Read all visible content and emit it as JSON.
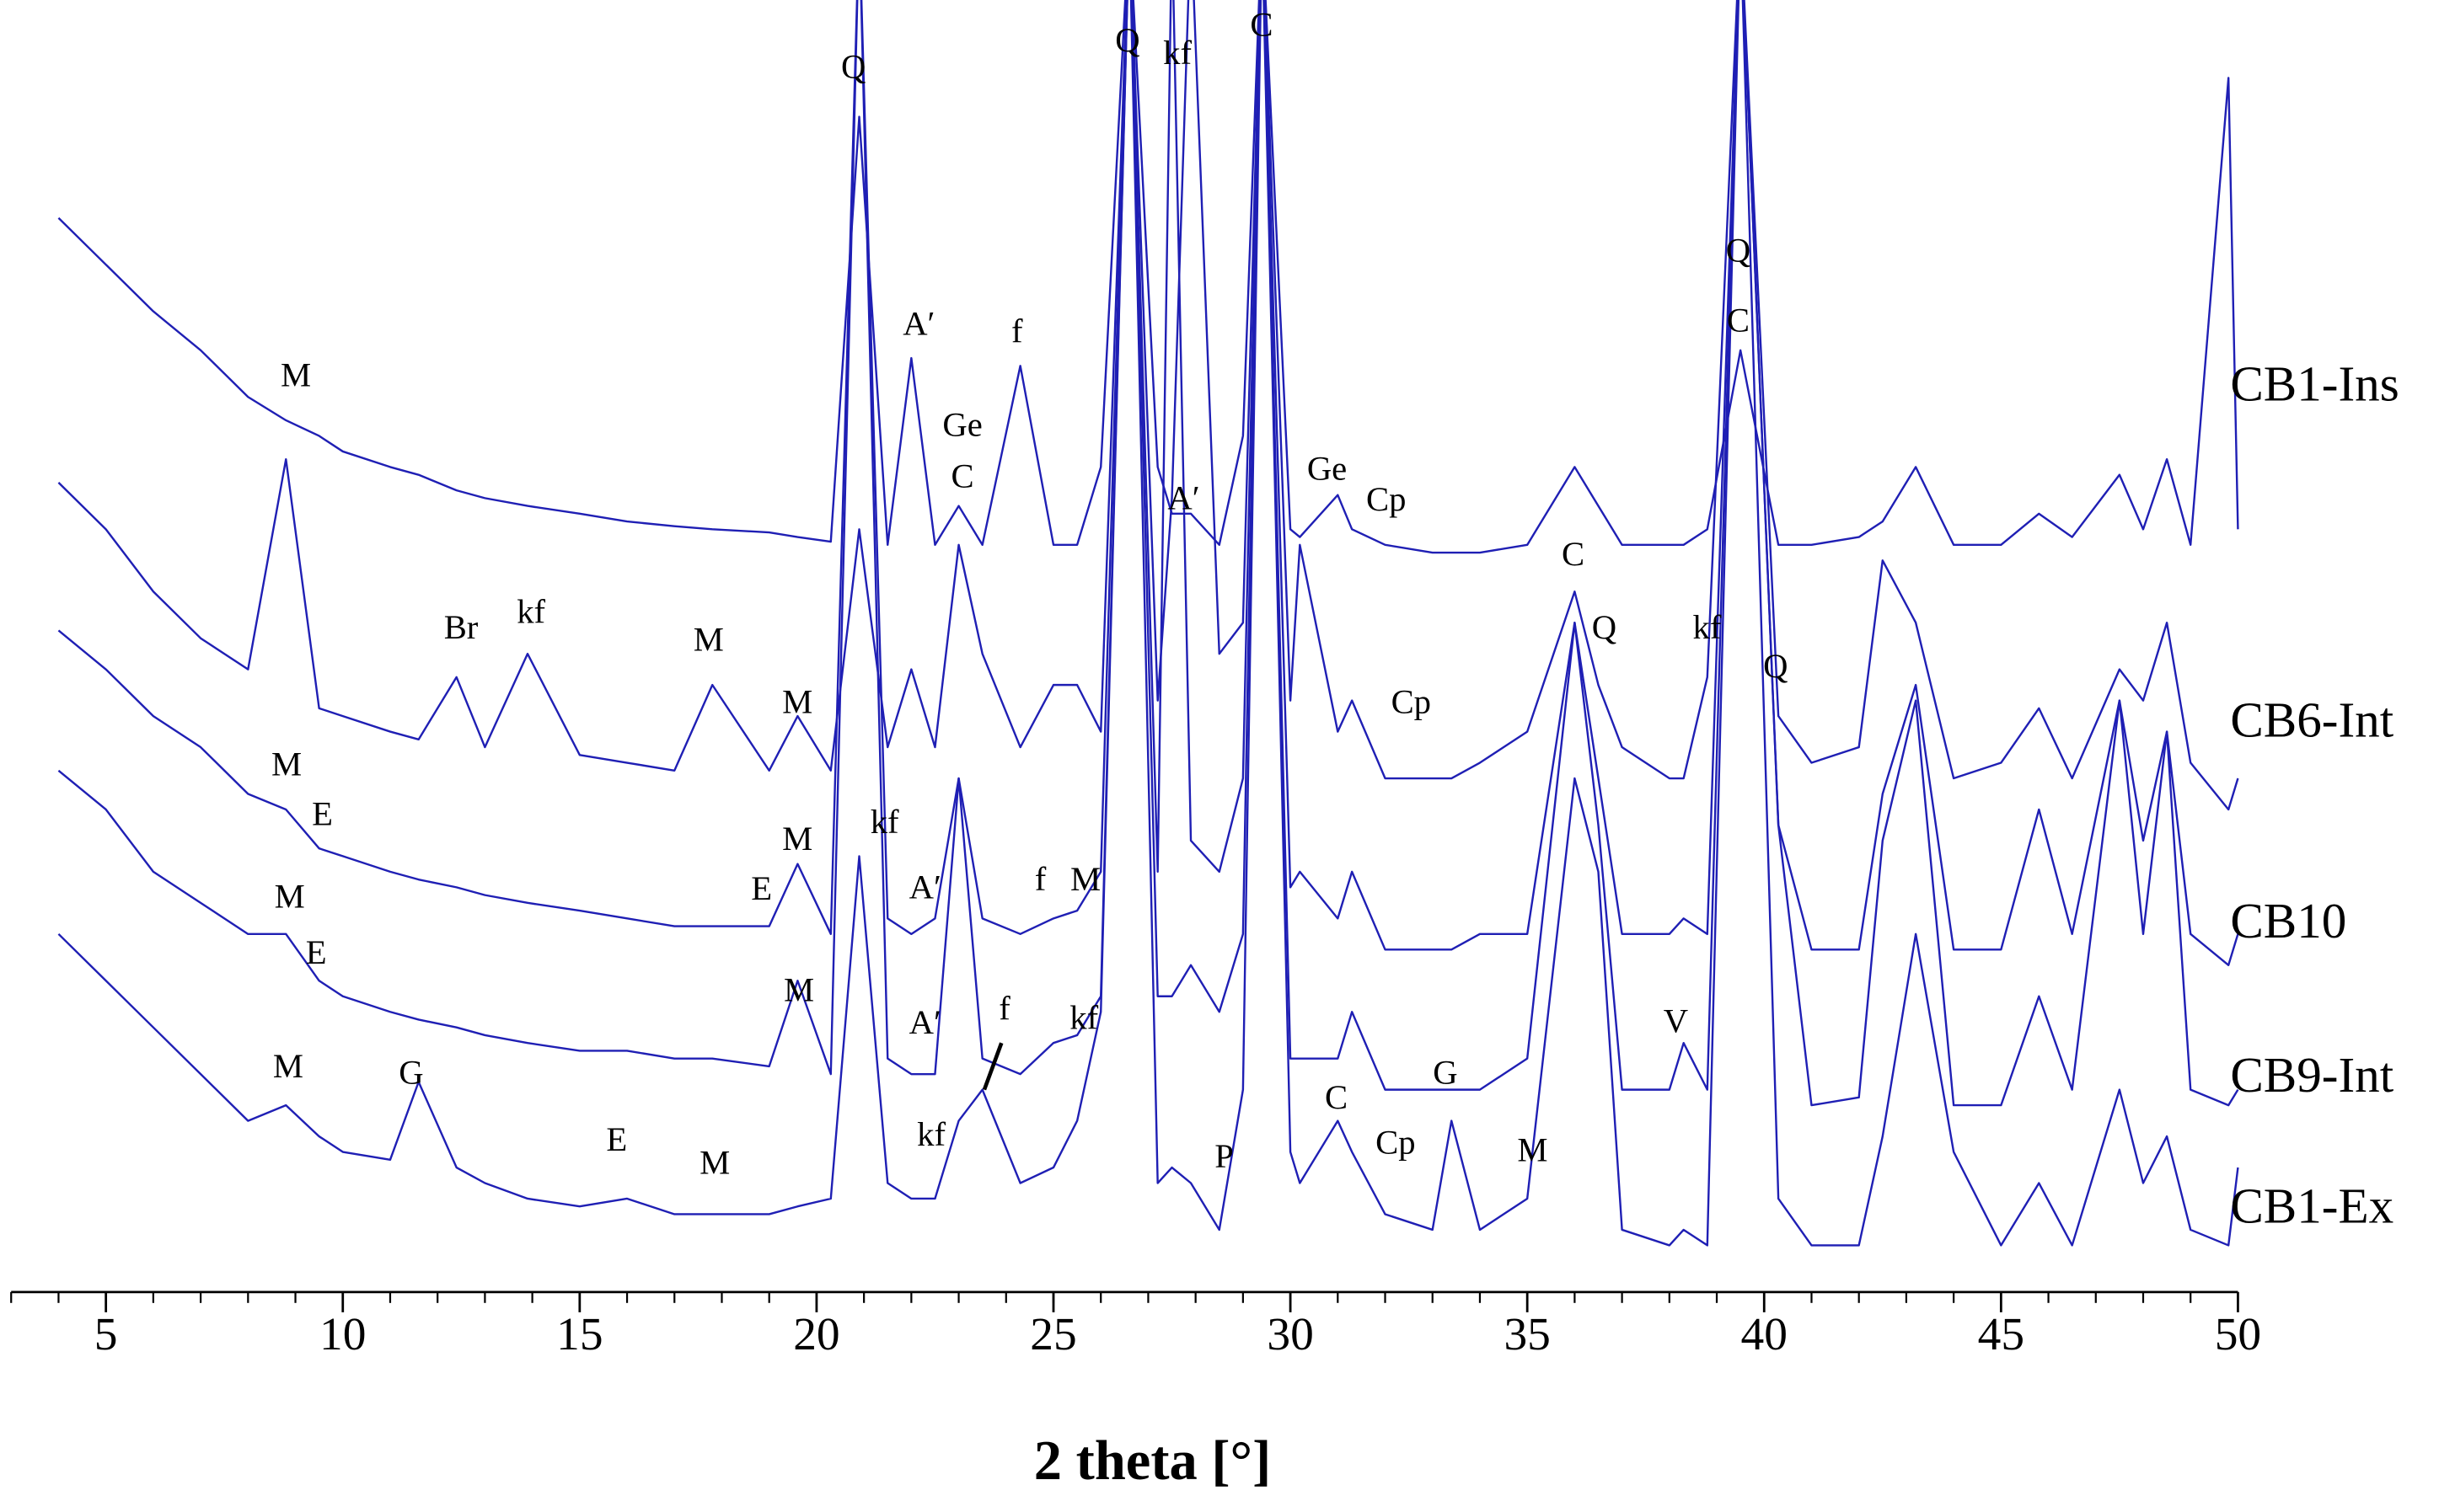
{
  "chart_data": {
    "type": "line",
    "x_label": "2 theta [°]",
    "xlim": [
      3,
      50
    ],
    "xticks": [
      5,
      10,
      15,
      20,
      25,
      30,
      35,
      40,
      45,
      50
    ],
    "ylim": [
      0,
      830
    ],
    "x": [
      4,
      5,
      6,
      7,
      8,
      8.8,
      9.5,
      10,
      11,
      11.6,
      12.4,
      13,
      13.9,
      15,
      16,
      17,
      17.8,
      19,
      19.6,
      20.3,
      20.9,
      21.5,
      22,
      22.5,
      23,
      23.5,
      24.3,
      25,
      25.5,
      26,
      26.6,
      27.2,
      27.5,
      27.9,
      28.5,
      29,
      29.4,
      30,
      30.2,
      31,
      31.3,
      32,
      33,
      33.4,
      34,
      35,
      36,
      36.5,
      37,
      38,
      38.3,
      38.8,
      39.5,
      40.3,
      41,
      42,
      42.5,
      43.2,
      44,
      45,
      45.8,
      46.5,
      47.5,
      48,
      48.5,
      49,
      49.8,
      50
    ],
    "series": [
      {
        "name": "CB1-Ins",
        "color": "#1f1fb4",
        "values": [
          690,
          660,
          630,
          605,
          575,
          560,
          550,
          540,
          530,
          525,
          515,
          510,
          505,
          500,
          495,
          492,
          490,
          488,
          485,
          482,
          755,
          480,
          600,
          480,
          505,
          480,
          595,
          480,
          480,
          530,
          880,
          530,
          500,
          500,
          480,
          550,
          880,
          490,
          485,
          512,
          490,
          480,
          475,
          475,
          475,
          480,
          530,
          505,
          480,
          480,
          480,
          490,
          605,
          480,
          480,
          485,
          495,
          530,
          480,
          480,
          500,
          485,
          525,
          490,
          535,
          480,
          780,
          490
        ]
      },
      {
        "name": "CB6-Int",
        "color": "#1f1fb4",
        "values": [
          520,
          490,
          450,
          420,
          400,
          535,
          375,
          370,
          360,
          355,
          395,
          350,
          410,
          345,
          340,
          335,
          390,
          335,
          370,
          335,
          490,
          350,
          400,
          350,
          480,
          410,
          350,
          390,
          390,
          360,
          880,
          380,
          510,
          880,
          410,
          430,
          880,
          380,
          480,
          360,
          380,
          330,
          330,
          330,
          340,
          360,
          450,
          390,
          350,
          330,
          330,
          395,
          880,
          370,
          340,
          350,
          470,
          430,
          330,
          340,
          375,
          330,
          400,
          380,
          430,
          340,
          310,
          330
        ]
      },
      {
        "name": "CB10",
        "color": "#1f1fb4",
        "values": [
          425,
          400,
          370,
          350,
          320,
          310,
          285,
          280,
          270,
          265,
          260,
          255,
          250,
          245,
          240,
          235,
          235,
          235,
          275,
          230,
          880,
          240,
          230,
          240,
          330,
          240,
          230,
          240,
          245,
          270,
          880,
          270,
          880,
          290,
          270,
          330,
          880,
          260,
          270,
          240,
          270,
          220,
          220,
          220,
          230,
          230,
          430,
          330,
          230,
          230,
          240,
          230,
          880,
          300,
          220,
          220,
          320,
          390,
          220,
          220,
          310,
          230,
          380,
          290,
          360,
          230,
          210,
          230
        ]
      },
      {
        "name": "CB9-Int",
        "color": "#1f1fb4",
        "values": [
          335,
          310,
          270,
          250,
          230,
          230,
          200,
          190,
          180,
          175,
          170,
          165,
          160,
          155,
          155,
          150,
          150,
          145,
          200,
          140,
          880,
          150,
          140,
          140,
          330,
          150,
          140,
          160,
          165,
          190,
          880,
          190,
          190,
          210,
          180,
          230,
          880,
          150,
          150,
          150,
          180,
          130,
          130,
          130,
          130,
          150,
          430,
          300,
          130,
          130,
          160,
          130,
          880,
          300,
          120,
          125,
          290,
          380,
          120,
          120,
          190,
          130,
          380,
          230,
          360,
          130,
          120,
          130
        ]
      },
      {
        "name": "CB1-Ex",
        "color": "#1f1fb4",
        "values": [
          230,
          200,
          170,
          140,
          110,
          120,
          100,
          90,
          85,
          135,
          80,
          70,
          60,
          55,
          60,
          50,
          50,
          50,
          55,
          60,
          280,
          70,
          60,
          60,
          110,
          130,
          70,
          80,
          110,
          180,
          880,
          70,
          80,
          70,
          40,
          130,
          880,
          90,
          70,
          110,
          90,
          50,
          40,
          110,
          40,
          60,
          330,
          270,
          40,
          30,
          40,
          30,
          880,
          60,
          30,
          30,
          100,
          230,
          90,
          30,
          70,
          30,
          130,
          70,
          100,
          40,
          30,
          80
        ]
      }
    ],
    "annotations": [
      "Q",
      "Q",
      "kf",
      "C",
      "A′",
      "f",
      "Ge",
      "C",
      "M",
      "Ge",
      "Cp",
      "A′",
      "Q",
      "C",
      "C",
      "Q",
      "kf",
      "Q",
      "Br",
      "kf",
      "M",
      "M",
      "Cp",
      "M",
      "E",
      "kf",
      "M",
      "E",
      "A′",
      "f",
      "M",
      "M",
      "E",
      "M",
      "A′",
      "f",
      "kf",
      "V",
      "G",
      "M",
      "G",
      "C",
      "Cp",
      "E",
      "M",
      "kf",
      "P",
      "M"
    ]
  }
}
